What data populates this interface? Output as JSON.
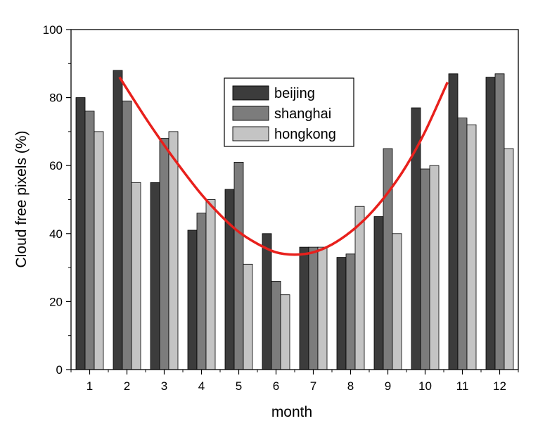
{
  "chart_data": {
    "type": "bar",
    "xlabel": "month",
    "ylabel": "Cloud free pixels  (%)",
    "ylim": [
      0,
      100
    ],
    "yticks": [
      "0",
      "20",
      "40",
      "60",
      "80",
      "100"
    ],
    "categories": [
      "1",
      "2",
      "3",
      "4",
      "5",
      "6",
      "7",
      "8",
      "9",
      "10",
      "11",
      "12"
    ],
    "series": [
      {
        "name": "beijing",
        "color": "#3c3c3c",
        "values": [
          80,
          88,
          55,
          41,
          53,
          40,
          36,
          33,
          45,
          77,
          87,
          86
        ]
      },
      {
        "name": "shanghai",
        "color": "#7c7c7c",
        "values": [
          76,
          79,
          68,
          46,
          61,
          26,
          36,
          34,
          65,
          59,
          74,
          87
        ]
      },
      {
        "name": "hongkong",
        "color": "#c4c4c4",
        "values": [
          70,
          55,
          70,
          50,
          31,
          22,
          36,
          48,
          40,
          60,
          72,
          65
        ]
      }
    ],
    "fit_curve": {
      "color": "#e8201c",
      "x": [
        1.8,
        2.5,
        3.0,
        3.5,
        4.0,
        4.5,
        5.0,
        5.5,
        6.0,
        6.5,
        7.0,
        7.5,
        8.0,
        8.5,
        9.0,
        9.5,
        10.0,
        10.6
      ],
      "y": [
        86,
        74,
        66,
        58.5,
        51.5,
        45.5,
        40.5,
        37,
        34.5,
        33.8,
        34.5,
        36.8,
        40.5,
        45.5,
        52,
        60,
        70,
        84.5
      ]
    },
    "legend_position": "top-center",
    "grid": false
  }
}
